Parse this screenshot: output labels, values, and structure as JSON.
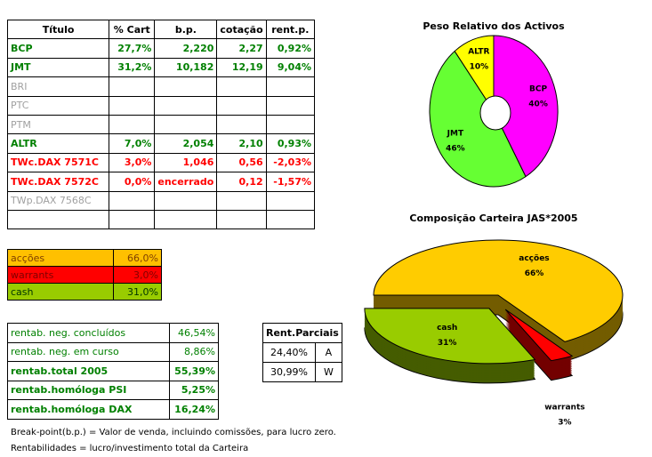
{
  "table": {
    "header": [
      "Título",
      "% Cart",
      "b.p.",
      "cotação",
      "rent.p."
    ],
    "rows": [
      [
        "BCP",
        "27,7%",
        "2,220",
        "2,27",
        "0,92%"
      ],
      [
        "JMT",
        "31,2%",
        "10,182",
        "12,19",
        "9,04%"
      ],
      [
        "BRI"
      ],
      [
        "PTC"
      ],
      [
        "PTM"
      ],
      [
        "ALTR",
        "7,0%",
        "2,054",
        "2,10",
        "0,93%"
      ],
      [
        "TWc.DAX 7571C",
        "3,0%",
        "1,046",
        "0,56",
        "-2,03%"
      ],
      [
        "TWc.DAX 7572C",
        "0,0%",
        "encerrado",
        "0,12",
        "-1,57%"
      ],
      [
        "TWp.DAX 7568C"
      ]
    ]
  },
  "allocation": {
    "rows": [
      [
        "acções",
        "66,0%"
      ],
      [
        "warrants",
        "3,0%"
      ],
      [
        "cash",
        "31,0%"
      ]
    ]
  },
  "returns": {
    "rows": [
      [
        "rentab. neg. concluídos",
        "46,54%"
      ],
      [
        "rentab. neg. em curso",
        "8,86%"
      ],
      [
        "rentab.total 2005",
        "55,39%"
      ],
      [
        "rentab.homóloga PSI",
        "5,25%"
      ],
      [
        "rentab.homóloga DAX",
        "16,24%"
      ]
    ]
  },
  "partial": {
    "title": "Rent.Parciais",
    "rows": [
      [
        "24,40%",
        "A"
      ],
      [
        "30,99%",
        "W"
      ]
    ]
  },
  "notes": [
    "Break-point(b.p.) = Valor de venda, incluindo comissões, para lucro zero.",
    "Rentabilidades = lucro/investimento total da Carteira"
  ],
  "chart_data": [
    {
      "type": "donut",
      "title": "Peso Relativo dos Activos",
      "categories": [
        "BCP",
        "JMT",
        "ALTR"
      ],
      "values": [
        40,
        46,
        10
      ],
      "value_labels": [
        "40%",
        "46%",
        "10%"
      ],
      "colors": [
        "#ff00ff",
        "#66ff33",
        "#ffff00"
      ]
    },
    {
      "type": "pie3d",
      "title": "Composição Carteira JAS*2005",
      "categories": [
        "acções",
        "warrants",
        "cash"
      ],
      "values": [
        66,
        3,
        31
      ],
      "value_labels": [
        "66%",
        "3%",
        "31%"
      ],
      "colors": [
        "#ffcc00",
        "#ff0000",
        "#99cc00"
      ]
    }
  ]
}
